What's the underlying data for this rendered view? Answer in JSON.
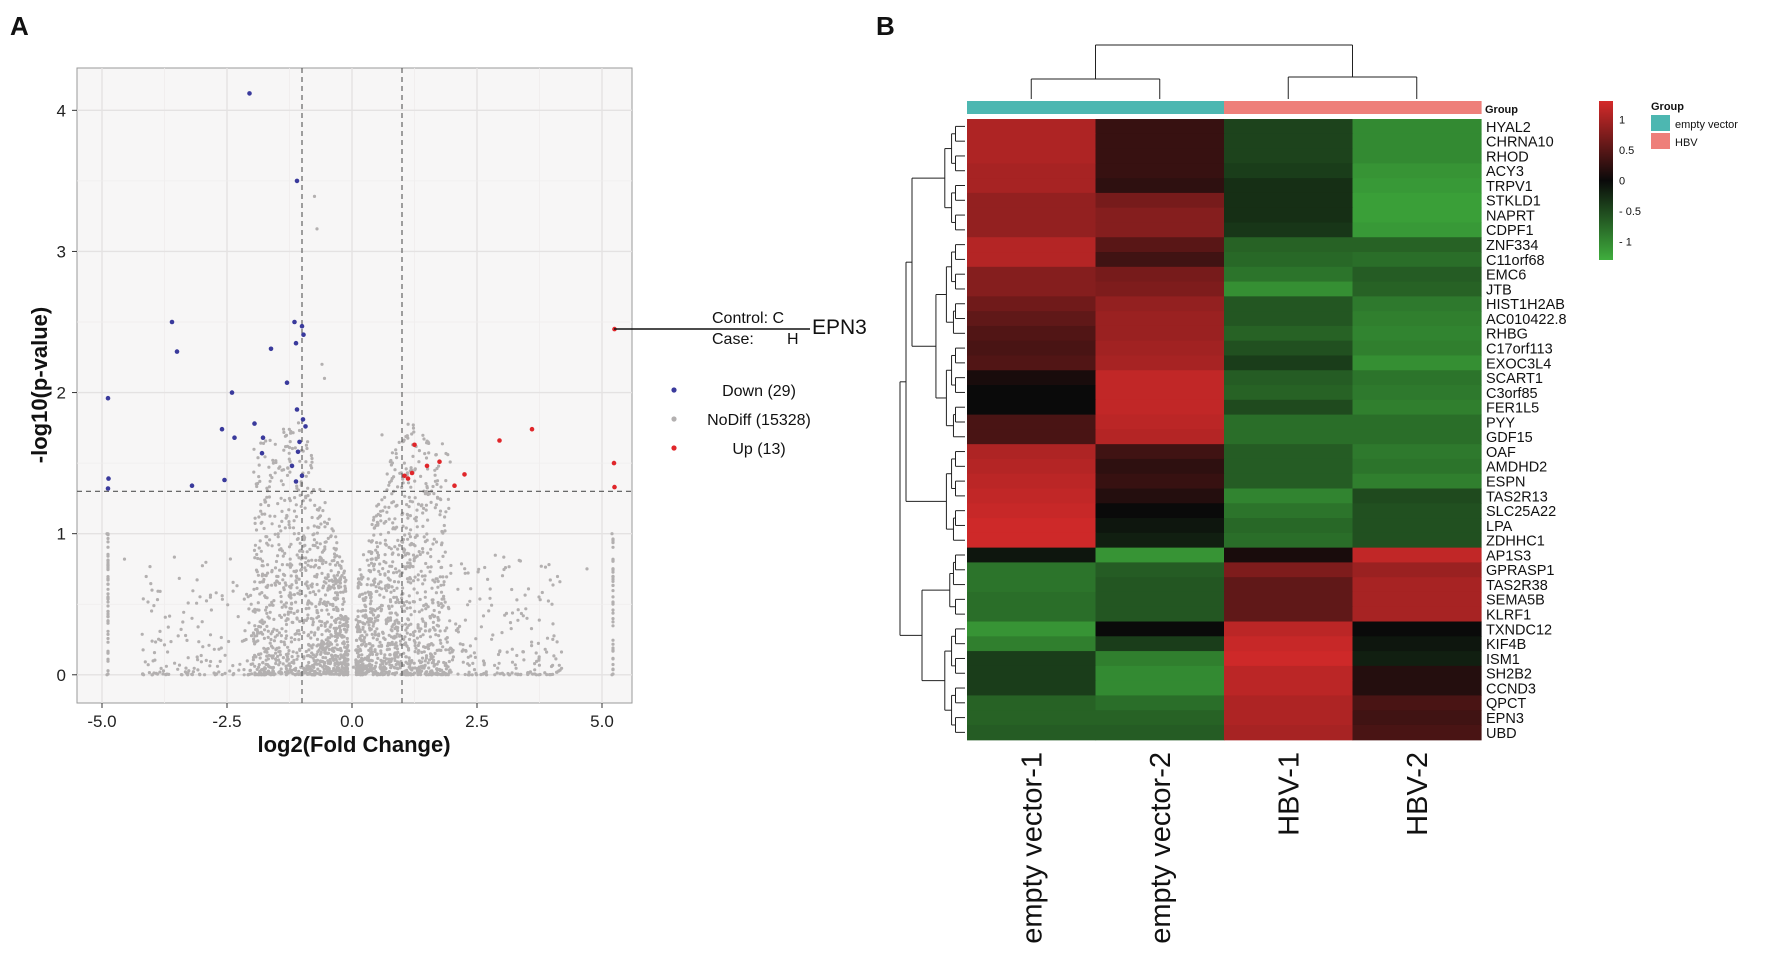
{
  "panels": {
    "a": "A",
    "b": "B"
  },
  "chart_data": [
    {
      "type": "scatter",
      "title": "",
      "xlabel": "log2(Fold Change)",
      "ylabel": "-log10(p-value)",
      "xlim": [
        -5.5,
        5.6
      ],
      "ylim": [
        -0.2,
        4.3
      ],
      "xticks": [
        "-5.0",
        "-2.5",
        "0.0",
        "2.5",
        "5.0"
      ],
      "yticks": [
        "0",
        "1",
        "2",
        "3",
        "4"
      ],
      "grid": true,
      "thresholds": {
        "x": [
          -1,
          1
        ],
        "y": 1.3
      },
      "colors": {
        "Down": "#3a3a9c",
        "NoDiff": "#b3b0b0",
        "Up": "#e0262a"
      },
      "legend": [
        {
          "label": "Down (29)",
          "color": "#3a3a9c"
        },
        {
          "label": "NoDiff (15328)",
          "color": "#b3b0b0"
        },
        {
          "label": "Up (13)",
          "color": "#e0262a"
        }
      ],
      "annotation": {
        "gene": "EPN3",
        "control": "Control: C",
        "case": "Case:",
        "case_value": "H",
        "point": [
          5.25,
          2.45
        ]
      },
      "series": [
        {
          "name": "Down",
          "points": [
            [
              -2.05,
              4.12
            ],
            [
              -1.1,
              3.5
            ],
            [
              -1.15,
              2.5
            ],
            [
              -1.0,
              2.47
            ],
            [
              -0.97,
              2.41
            ],
            [
              -1.12,
              2.35
            ],
            [
              -3.6,
              2.5
            ],
            [
              -3.5,
              2.29
            ],
            [
              -1.62,
              2.31
            ],
            [
              -1.3,
              2.07
            ],
            [
              -2.4,
              2.0
            ],
            [
              -1.1,
              1.88
            ],
            [
              -0.98,
              1.81
            ],
            [
              -0.93,
              1.76
            ],
            [
              -1.95,
              1.78
            ],
            [
              -2.6,
              1.74
            ],
            [
              -2.35,
              1.68
            ],
            [
              -1.78,
              1.68
            ],
            [
              -1.05,
              1.65
            ],
            [
              -1.8,
              1.57
            ],
            [
              -1.08,
              1.58
            ],
            [
              -1.2,
              1.48
            ],
            [
              -1.0,
              1.41
            ],
            [
              -1.12,
              1.37
            ],
            [
              -3.2,
              1.34
            ],
            [
              -2.55,
              1.38
            ],
            [
              -4.88,
              1.96
            ],
            [
              -4.87,
              1.39
            ],
            [
              -4.88,
              1.32
            ]
          ]
        },
        {
          "name": "Up",
          "points": [
            [
              5.25,
              2.45
            ],
            [
              3.6,
              1.74
            ],
            [
              2.95,
              1.66
            ],
            [
              1.25,
              1.63
            ],
            [
              1.75,
              1.51
            ],
            [
              1.5,
              1.48
            ],
            [
              2.25,
              1.42
            ],
            [
              1.2,
              1.43
            ],
            [
              1.05,
              1.41
            ],
            [
              1.12,
              1.39
            ],
            [
              2.05,
              1.34
            ],
            [
              5.24,
              1.5
            ],
            [
              5.25,
              1.33
            ]
          ]
        },
        {
          "name": "NoDiff",
          "points": [
            [
              -0.75,
              3.39
            ],
            [
              -0.7,
              3.16
            ],
            [
              -0.6,
              2.2
            ],
            [
              -4.9,
              1.0
            ],
            [
              -4.9,
              0.0
            ],
            [
              5.2,
              1.0
            ],
            [
              5.2,
              0.0
            ],
            [
              -3.2,
              0.4
            ],
            [
              3.5,
              0.4
            ],
            [
              -1.4,
              1.45
            ],
            [
              0.9,
              1.2
            ],
            [
              -4.0,
              0.6
            ],
            [
              4.0,
              0.5
            ],
            [
              -4.55,
              0.82
            ],
            [
              4.7,
              0.75
            ],
            [
              -0.55,
              2.1
            ],
            [
              0.6,
              1.7
            ]
          ]
        }
      ]
    },
    {
      "type": "heatmap",
      "title": "",
      "columns": [
        "empty vector-1",
        "empty vector-2",
        "HBV-1",
        "HBV-2"
      ],
      "column_groups": [
        "empty vector",
        "empty vector",
        "HBV",
        "HBV"
      ],
      "group_title": "Group",
      "group_colors": {
        "empty vector": "#4db7b1",
        "HBV": "#ee7f7a"
      },
      "scale_ticks": [
        1,
        0.5,
        0,
        -0.5,
        -1
      ],
      "scale_tick_labels": [
        "1",
        "0.5",
        "0",
        "- 0.5",
        "- 1"
      ],
      "scale_colors": {
        "high": "#d42a2a",
        "mid": "#0a0a0a",
        "low": "#3fae3d"
      },
      "rows": [
        "HYAL2",
        "CHRNA10",
        "RHOD",
        "ACY3",
        "TRPV1",
        "STKLD1",
        "NAPRT",
        "CDPF1",
        "ZNF334",
        "C11orf68",
        "EMC6",
        "JTB",
        "HIST1H2AB",
        "AC010422.8",
        "RHBG",
        "C17orf113",
        "EXOC3L4",
        "SCART1",
        "C3orf85",
        "FER1L5",
        "PYY",
        "GDF15",
        "OAF",
        "AMDHD2",
        "ESPN",
        "TAS2R13",
        "SLC25A22",
        "LPA",
        "ZDHHC1",
        "AP1S3",
        "GPRASP1",
        "TAS2R38",
        "SEMA5B",
        "KLRF1",
        "TXNDC12",
        "KIF4B",
        "ISM1",
        "SH2B2",
        "CCND3",
        "QPCT",
        "EPN3",
        "UBD"
      ],
      "values": [
        [
          1.0,
          0.2,
          -0.35,
          -0.95
        ],
        [
          1.0,
          0.2,
          -0.35,
          -0.95
        ],
        [
          1.0,
          0.2,
          -0.35,
          -0.95
        ],
        [
          0.95,
          0.2,
          -0.3,
          -1.05
        ],
        [
          0.95,
          0.15,
          -0.2,
          -1.1
        ],
        [
          0.8,
          0.6,
          -0.2,
          -1.15
        ],
        [
          0.8,
          0.7,
          -0.2,
          -1.15
        ],
        [
          0.8,
          0.7,
          -0.25,
          -1.1
        ],
        [
          1.05,
          0.4,
          -0.6,
          -0.6
        ],
        [
          1.05,
          0.25,
          -0.65,
          -0.7
        ],
        [
          0.7,
          0.6,
          -0.75,
          -0.55
        ],
        [
          0.7,
          0.65,
          -1.0,
          -0.6
        ],
        [
          0.55,
          0.8,
          -0.5,
          -0.8
        ],
        [
          0.45,
          0.85,
          -0.5,
          -0.85
        ],
        [
          0.35,
          0.85,
          -0.6,
          -0.9
        ],
        [
          0.3,
          0.9,
          -0.45,
          -0.85
        ],
        [
          0.35,
          0.95,
          -0.3,
          -1.0
        ],
        [
          0.05,
          1.15,
          -0.55,
          -0.75
        ],
        [
          0.0,
          1.15,
          -0.6,
          -0.8
        ],
        [
          0.0,
          1.15,
          -0.4,
          -0.85
        ],
        [
          0.3,
          1.1,
          -0.7,
          -0.7
        ],
        [
          0.3,
          1.05,
          -0.7,
          -0.7
        ],
        [
          1.0,
          0.25,
          -0.55,
          -0.8
        ],
        [
          1.05,
          0.15,
          -0.55,
          -0.75
        ],
        [
          1.1,
          0.2,
          -0.55,
          -0.85
        ],
        [
          1.15,
          0.1,
          -0.9,
          -0.4
        ],
        [
          1.2,
          0.0,
          -0.75,
          -0.45
        ],
        [
          1.25,
          -0.05,
          -0.65,
          -0.45
        ],
        [
          1.25,
          -0.1,
          -0.7,
          -0.45
        ],
        [
          -0.05,
          -1.05,
          0.05,
          1.15
        ],
        [
          -0.75,
          -0.55,
          0.65,
          0.85
        ],
        [
          -0.75,
          -0.5,
          0.45,
          0.95
        ],
        [
          -0.7,
          -0.5,
          0.45,
          0.95
        ],
        [
          -0.7,
          -0.5,
          0.45,
          0.95
        ],
        [
          -1.05,
          0.0,
          1.1,
          0.0
        ],
        [
          -0.85,
          -0.3,
          1.2,
          -0.05
        ],
        [
          -0.3,
          -0.85,
          1.25,
          -0.1
        ],
        [
          -0.3,
          -0.95,
          1.1,
          0.1
        ],
        [
          -0.3,
          -0.95,
          1.1,
          0.1
        ],
        [
          -0.6,
          -0.7,
          1.0,
          0.3
        ],
        [
          -0.6,
          -0.6,
          1.0,
          0.25
        ],
        [
          -0.55,
          -0.55,
          0.95,
          0.3
        ]
      ]
    }
  ]
}
